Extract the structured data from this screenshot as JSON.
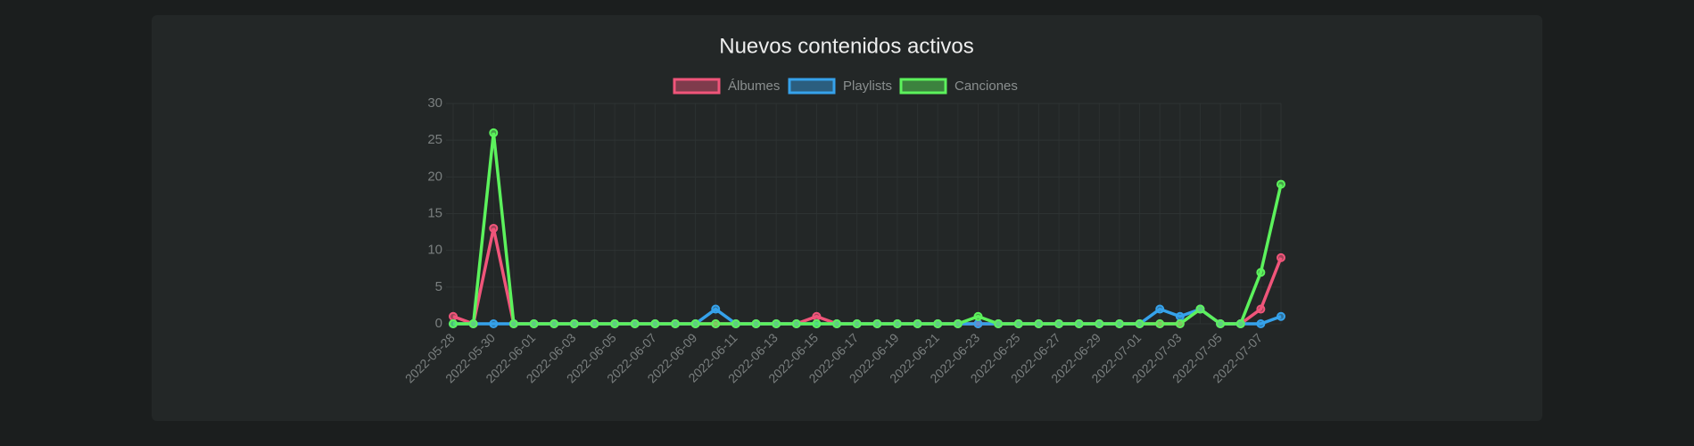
{
  "chart_data": {
    "type": "line",
    "title": "Nuevos contenidos activos",
    "categories": [
      "2022-05-28",
      null,
      "2022-05-30",
      null,
      "2022-06-01",
      null,
      "2022-06-03",
      null,
      "2022-06-05",
      null,
      "2022-06-07",
      null,
      "2022-06-09",
      null,
      "2022-06-11",
      null,
      "2022-06-13",
      null,
      "2022-06-15",
      null,
      "2022-06-17",
      null,
      "2022-06-19",
      null,
      "2022-06-21",
      null,
      "2022-06-23",
      null,
      "2022-06-25",
      null,
      "2022-06-27",
      null,
      "2022-06-29",
      null,
      "2022-07-01",
      null,
      "2022-07-03",
      null,
      "2022-07-05",
      null,
      "2022-07-07",
      null
    ],
    "series": [
      {
        "name": "Álbumes",
        "color": "#f0557a",
        "values": [
          1,
          0,
          13,
          0,
          0,
          0,
          0,
          0,
          0,
          0,
          0,
          0,
          0,
          0,
          0,
          0,
          0,
          0,
          1,
          0,
          0,
          0,
          0,
          0,
          0,
          0,
          0,
          0,
          0,
          0,
          0,
          0,
          0,
          0,
          0,
          0,
          0,
          2,
          0,
          0,
          2,
          9
        ]
      },
      {
        "name": "Playlists",
        "color": "#36a2eb",
        "values": [
          0,
          0,
          0,
          0,
          0,
          0,
          0,
          0,
          0,
          0,
          0,
          0,
          0,
          2,
          0,
          0,
          0,
          0,
          0,
          0,
          0,
          0,
          0,
          0,
          0,
          0,
          0,
          0,
          0,
          0,
          0,
          0,
          0,
          0,
          0,
          2,
          1,
          2,
          0,
          0,
          0,
          1
        ]
      },
      {
        "name": "Canciones",
        "color": "#5cf25c",
        "values": [
          0,
          0,
          26,
          0,
          0,
          0,
          0,
          0,
          0,
          0,
          0,
          0,
          0,
          0,
          0,
          0,
          0,
          0,
          0,
          0,
          0,
          0,
          0,
          0,
          0,
          0,
          1,
          0,
          0,
          0,
          0,
          0,
          0,
          0,
          0,
          0,
          0,
          2,
          0,
          0,
          7,
          19
        ]
      }
    ],
    "ylim": [
      0,
      30
    ],
    "yticks": [
      0,
      5,
      10,
      15,
      20,
      25,
      30
    ],
    "grid": true
  }
}
